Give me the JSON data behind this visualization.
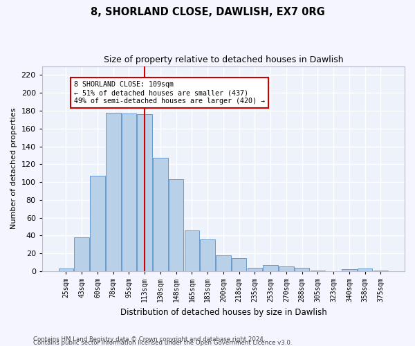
{
  "title1": "8, SHORLAND CLOSE, DAWLISH, EX7 0RG",
  "title2": "Size of property relative to detached houses in Dawlish",
  "xlabel": "Distribution of detached houses by size in Dawlish",
  "ylabel": "Number of detached properties",
  "categories": [
    "25sqm",
    "43sqm",
    "60sqm",
    "78sqm",
    "95sqm",
    "113sqm",
    "130sqm",
    "148sqm",
    "165sqm",
    "183sqm",
    "200sqm",
    "218sqm",
    "235sqm",
    "253sqm",
    "270sqm",
    "288sqm",
    "305sqm",
    "323sqm",
    "340sqm",
    "358sqm",
    "375sqm"
  ],
  "values": [
    3,
    38,
    107,
    178,
    177,
    176,
    127,
    103,
    46,
    36,
    18,
    15,
    4,
    7,
    5,
    4,
    1,
    0,
    2,
    3,
    1
  ],
  "bar_color": "#b8d0e8",
  "bar_edge_color": "#6699cc",
  "background_color": "#eef2fa",
  "grid_color": "#ffffff",
  "ref_line_color": "#cc0000",
  "ref_line_x": 5.0,
  "annotation_text": "8 SHORLAND CLOSE: 109sqm\n← 51% of detached houses are smaller (437)\n49% of semi-detached houses are larger (420) →",
  "annotation_box_color": "#ffffff",
  "annotation_box_edge_color": "#cc0000",
  "ylim": [
    0,
    230
  ],
  "yticks": [
    0,
    20,
    40,
    60,
    80,
    100,
    120,
    140,
    160,
    180,
    200,
    220
  ],
  "footer1": "Contains HM Land Registry data © Crown copyright and database right 2024.",
  "footer2": "Contains public sector information licensed under the Open Government Licence v3.0."
}
